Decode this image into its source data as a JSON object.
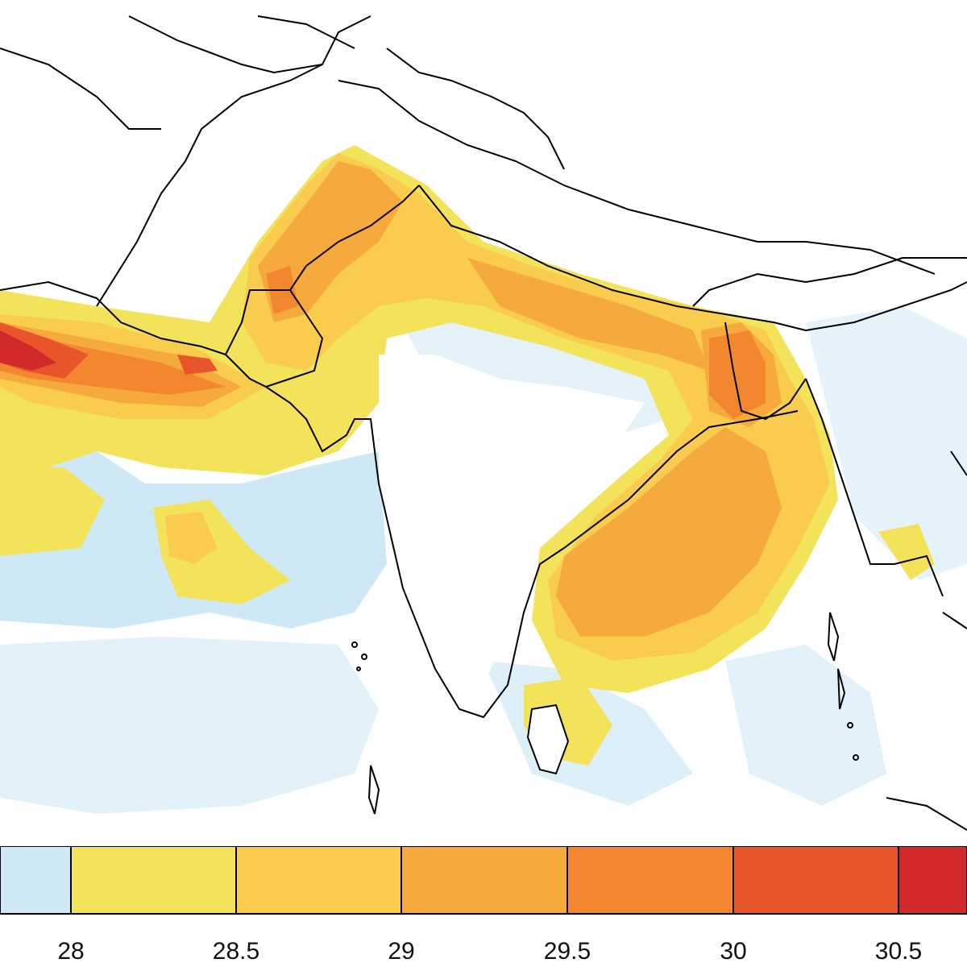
{
  "map": {
    "colors": {
      "below_28": "#cfe8f6",
      "28_28.5": "#f3e35a",
      "28.5_29": "#f9cc4e",
      "29_29.5": "#f6a93c",
      "29.5_30": "#f2872f",
      "30_30.5": "#e8552b",
      "above_30.5": "#d22a2a",
      "land": "#ffffff",
      "ocean_low": "#ffffff",
      "outline": "#000000"
    }
  },
  "colorbar": {
    "tick_labels": [
      "28",
      "28.5",
      "29",
      "29.5",
      "30",
      "30.5"
    ],
    "colors": [
      "#cfe8f6",
      "#f3e35a",
      "#f9cc4e",
      "#f6a93c",
      "#f2872f",
      "#e8552b",
      "#d22a2a"
    ]
  }
}
